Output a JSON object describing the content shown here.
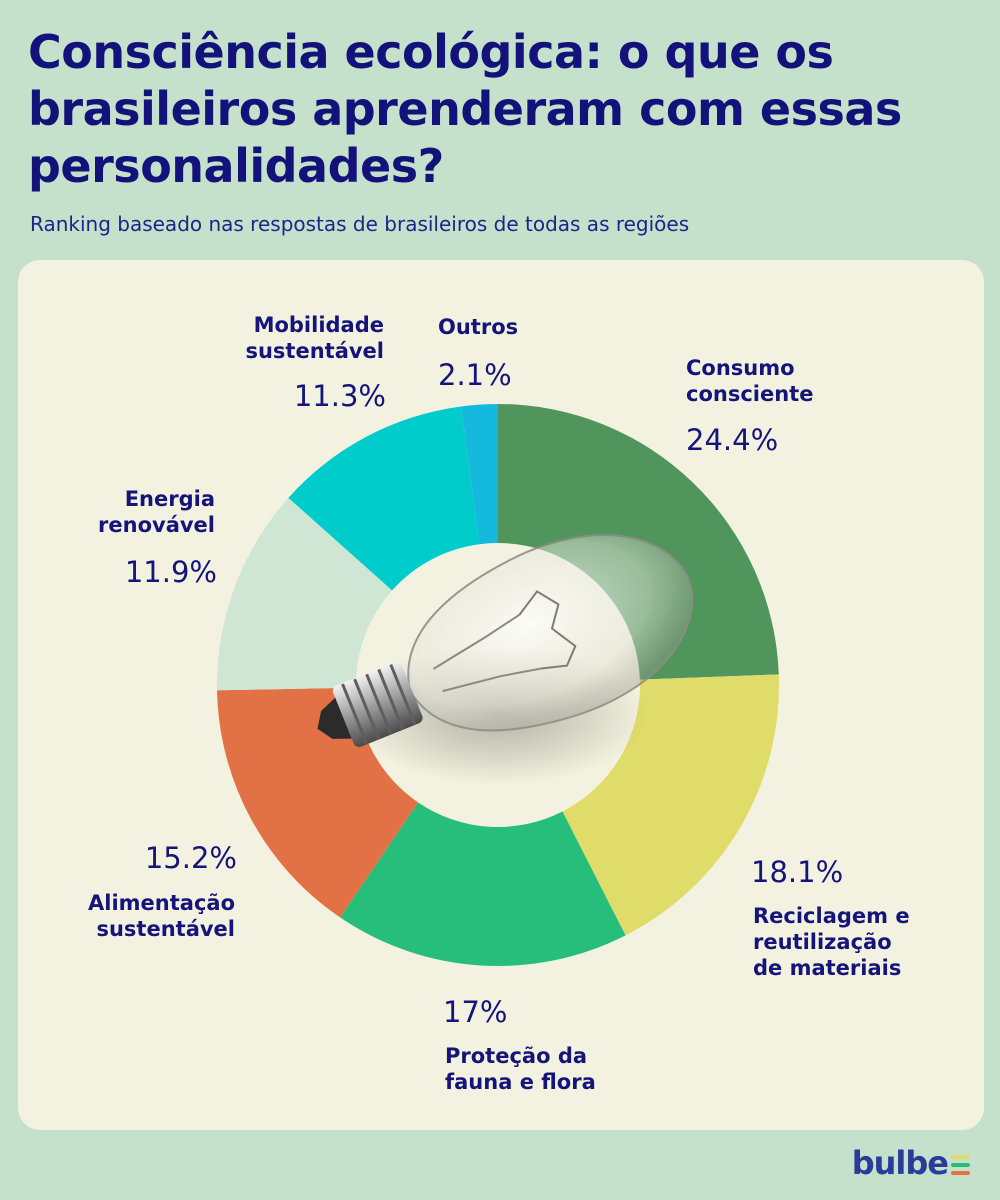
{
  "title": "Consciência ecológica: o que os brasileiros aprenderam com essas personalidades?",
  "subtitle": "Ranking baseado nas respostas de brasileiros de todas as regiões",
  "brand": "bulbe",
  "chart_data": {
    "type": "pie",
    "style": "donut",
    "center_image": "light-bulb",
    "slices": [
      {
        "label": "Consumo consciente",
        "value": 24.4,
        "display": "24.4%",
        "color": "#50965c"
      },
      {
        "label": "Reciclagem e reutilização de materiais",
        "value": 18.1,
        "display": "18.1%",
        "color": "#e0dc6a"
      },
      {
        "label": "Proteção da fauna e flora",
        "value": 17,
        "display": "17%",
        "color": "#27be7c"
      },
      {
        "label": "Alimentação sustentável",
        "value": 15.2,
        "display": "15.2%",
        "color": "#e27246"
      },
      {
        "label": "Energia renovável",
        "value": 11.9,
        "display": "11.9%",
        "color": "#cfe6d5"
      },
      {
        "label": "Mobilidade sustentável",
        "value": 11.3,
        "display": "11.3%",
        "color": "#00cccc"
      },
      {
        "label": "Outros",
        "value": 2.1,
        "display": "2.1%",
        "color": "#16b9de"
      }
    ]
  }
}
